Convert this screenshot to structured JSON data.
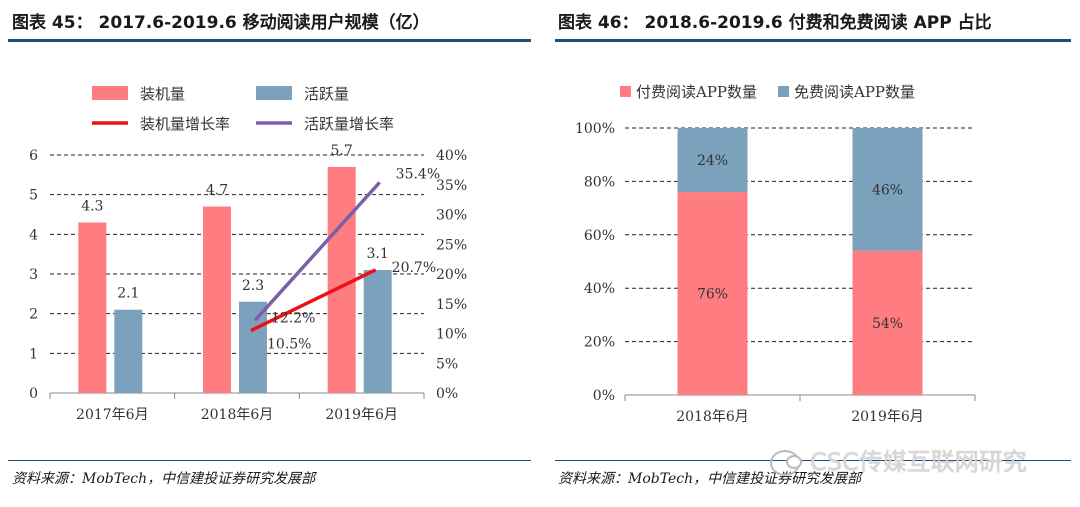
{
  "left": {
    "title": "图表 45：  2017.6-2019.6 移动阅读用户规模（亿）",
    "source": "资料来源：MobTech，中信建投证券研究发展部"
  },
  "right": {
    "title": "图表 46：  2018.6-2019.6 付费和免费阅读 APP 占比",
    "source": "资料来源：MobTech，中信建投证券研究发展部"
  },
  "watermark": "CSC传媒互联网研究",
  "chart_data": [
    {
      "type": "bar",
      "title": "2017.6-2019.6 移动阅读用户规模（亿）",
      "categories": [
        "2017年6月",
        "2018年6月",
        "2019年6月"
      ],
      "series": [
        {
          "name": "装机量",
          "kind": "bar",
          "axis": "left",
          "color": "#ff7c80",
          "values": [
            4.3,
            4.7,
            5.7
          ],
          "labels": [
            "4.3",
            "4.7",
            "5.7"
          ]
        },
        {
          "name": "活跃量",
          "kind": "bar",
          "axis": "left",
          "color": "#7ba1bd",
          "values": [
            2.1,
            2.3,
            3.1
          ],
          "labels": [
            "2.1",
            "2.3",
            "3.1"
          ]
        },
        {
          "name": "装机量增长率",
          "kind": "line",
          "axis": "right",
          "color": "#ee1111",
          "values": [
            null,
            10.5,
            20.7
          ],
          "labels": [
            "",
            "10.5%",
            "20.7%"
          ]
        },
        {
          "name": "活跃量增长率",
          "kind": "line",
          "axis": "right",
          "color": "#7d5ea8",
          "values": [
            null,
            12.2,
            35.4
          ],
          "labels": [
            "",
            "12.2%",
            "35.4%"
          ]
        }
      ],
      "ylim_left": [
        0,
        6
      ],
      "yticks_left": [
        "0",
        "1",
        "2",
        "3",
        "4",
        "5",
        "6"
      ],
      "ylim_right": [
        0,
        40
      ],
      "yticks_right": [
        "0%",
        "5%",
        "10%",
        "15%",
        "20%",
        "25%",
        "30%",
        "35%",
        "40%"
      ],
      "legend": "top"
    },
    {
      "type": "bar",
      "stacked": true,
      "title": "2018.6-2019.6 付费和免费阅读 APP 占比",
      "categories": [
        "2018年6月",
        "2019年6月"
      ],
      "series": [
        {
          "name": "付费阅读APP数量",
          "color": "#ff7c80",
          "values": [
            76,
            54
          ],
          "labels": [
            "76%",
            "54%"
          ]
        },
        {
          "name": "免费阅读APP数量",
          "color": "#7ba1bd",
          "values": [
            24,
            46
          ],
          "labels": [
            "24%",
            "46%"
          ]
        }
      ],
      "ylim": [
        0,
        100
      ],
      "yticks": [
        "0%",
        "20%",
        "40%",
        "60%",
        "80%",
        "100%"
      ],
      "legend": "top"
    }
  ]
}
